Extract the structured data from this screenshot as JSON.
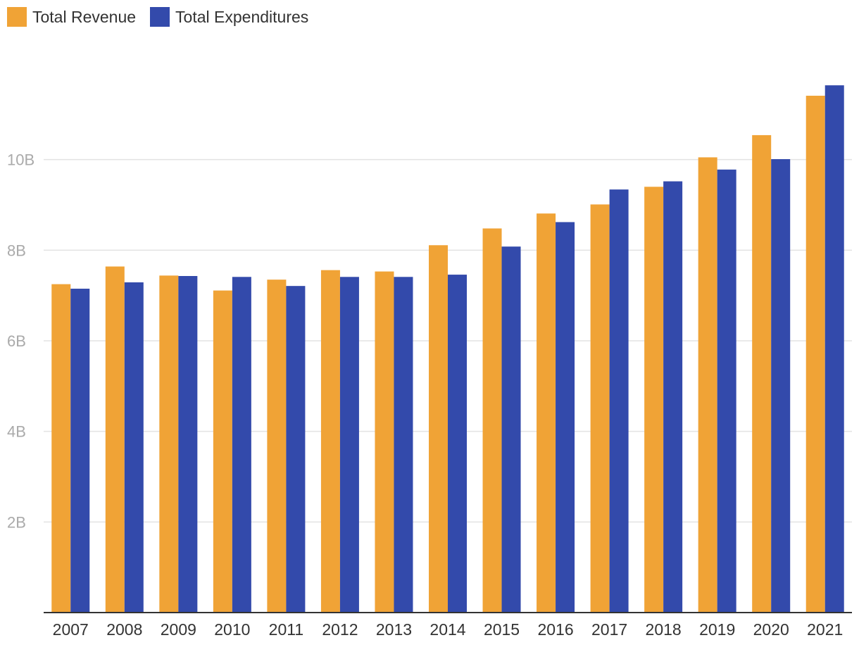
{
  "chart_data": {
    "type": "bar",
    "title": "",
    "xlabel": "",
    "ylabel": "",
    "categories": [
      "2007",
      "2008",
      "2009",
      "2010",
      "2011",
      "2012",
      "2013",
      "2014",
      "2015",
      "2016",
      "2017",
      "2018",
      "2019",
      "2020",
      "2021"
    ],
    "series": [
      {
        "name": "Total Revenue",
        "color": "#f0a336",
        "values": [
          7.25,
          7.64,
          7.44,
          7.11,
          7.35,
          7.56,
          7.53,
          8.11,
          8.48,
          8.81,
          9.01,
          9.4,
          10.05,
          10.54,
          11.41
        ]
      },
      {
        "name": "Total Expenditures",
        "color": "#334aab",
        "values": [
          7.15,
          7.29,
          7.43,
          7.41,
          7.21,
          7.41,
          7.41,
          7.46,
          8.08,
          8.62,
          9.34,
          9.52,
          9.78,
          10.01,
          11.64
        ]
      }
    ],
    "ylim": [
      0,
      12
    ],
    "yticks": [
      2,
      4,
      6,
      8,
      10
    ],
    "ytick_labels": [
      "2B",
      "4B",
      "6B",
      "8B",
      "10B"
    ],
    "grid": true,
    "legend_position": "top-left"
  }
}
